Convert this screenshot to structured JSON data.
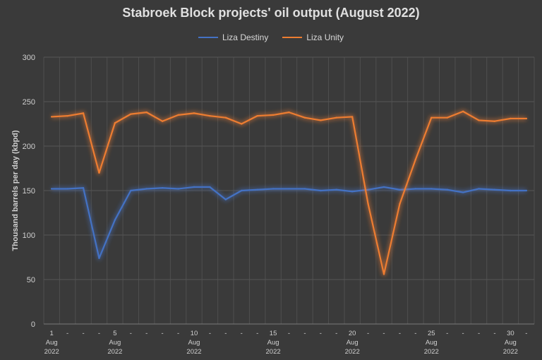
{
  "chart_data": {
    "type": "line",
    "title": "Stabroek Block projects' oil output (August 2022)",
    "ylabel": "Thousand barrels per day (kbpd)",
    "xlabel": "",
    "ylim": [
      0,
      300
    ],
    "yticks": [
      0,
      50,
      100,
      150,
      200,
      250,
      300
    ],
    "grid": true,
    "legend_position": "top",
    "x": [
      1,
      2,
      3,
      4,
      5,
      6,
      7,
      8,
      9,
      10,
      11,
      12,
      13,
      14,
      15,
      16,
      17,
      18,
      19,
      20,
      21,
      22,
      23,
      24,
      25,
      26,
      27,
      28,
      29,
      30,
      31
    ],
    "x_tick_labels": [
      {
        "x": 1,
        "lines": [
          "1",
          "Aug",
          "2022"
        ]
      },
      {
        "x": 2,
        "lines": [
          "-"
        ]
      },
      {
        "x": 3,
        "lines": [
          "-"
        ]
      },
      {
        "x": 4,
        "lines": [
          "-"
        ]
      },
      {
        "x": 5,
        "lines": [
          "5",
          "Aug",
          "2022"
        ]
      },
      {
        "x": 6,
        "lines": [
          "-"
        ]
      },
      {
        "x": 7,
        "lines": [
          "-"
        ]
      },
      {
        "x": 8,
        "lines": [
          "-"
        ]
      },
      {
        "x": 9,
        "lines": [
          "-"
        ]
      },
      {
        "x": 10,
        "lines": [
          "10",
          "Aug",
          "2022"
        ]
      },
      {
        "x": 11,
        "lines": [
          "-"
        ]
      },
      {
        "x": 12,
        "lines": [
          "-"
        ]
      },
      {
        "x": 13,
        "lines": [
          "-"
        ]
      },
      {
        "x": 14,
        "lines": [
          "-"
        ]
      },
      {
        "x": 15,
        "lines": [
          "15",
          "Aug",
          "2022"
        ]
      },
      {
        "x": 16,
        "lines": [
          "-"
        ]
      },
      {
        "x": 17,
        "lines": [
          "-"
        ]
      },
      {
        "x": 18,
        "lines": [
          "-"
        ]
      },
      {
        "x": 19,
        "lines": [
          "-"
        ]
      },
      {
        "x": 20,
        "lines": [
          "20",
          "Aug",
          "2022"
        ]
      },
      {
        "x": 21,
        "lines": [
          "-"
        ]
      },
      {
        "x": 22,
        "lines": [
          "-"
        ]
      },
      {
        "x": 23,
        "lines": [
          "-"
        ]
      },
      {
        "x": 24,
        "lines": [
          "-"
        ]
      },
      {
        "x": 25,
        "lines": [
          "25",
          "Aug",
          "2022"
        ]
      },
      {
        "x": 26,
        "lines": [
          "-"
        ]
      },
      {
        "x": 27,
        "lines": [
          "-"
        ]
      },
      {
        "x": 28,
        "lines": [
          "-"
        ]
      },
      {
        "x": 29,
        "lines": [
          "-"
        ]
      },
      {
        "x": 30,
        "lines": [
          "30",
          "Aug",
          "2022"
        ]
      },
      {
        "x": 31,
        "lines": [
          "-"
        ]
      }
    ],
    "series": [
      {
        "name": "Liza Destiny",
        "color": "#4472c4",
        "values": [
          152,
          152,
          153,
          74,
          117,
          150,
          152,
          153,
          152,
          154,
          154,
          140,
          150,
          151,
          152,
          152,
          152,
          150,
          151,
          149,
          151,
          154,
          151,
          152,
          152,
          151,
          148,
          152,
          151,
          150,
          150
        ]
      },
      {
        "name": "Liza Unity",
        "color": "#ed7d31",
        "values": [
          233,
          234,
          237,
          170,
          226,
          236,
          238,
          228,
          235,
          237,
          234,
          232,
          225,
          234,
          235,
          238,
          232,
          229,
          232,
          233,
          135,
          56,
          135,
          185,
          232,
          232,
          239,
          229,
          228,
          231,
          231
        ]
      }
    ]
  }
}
